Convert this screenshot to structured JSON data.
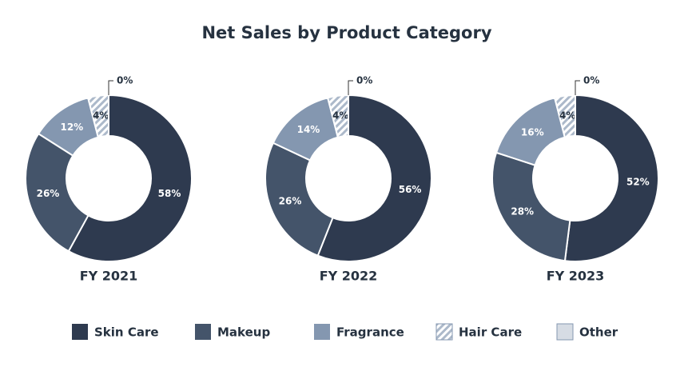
{
  "title": "Net Sales by Product Category",
  "categories": [
    "Skin Care",
    "Makeup",
    "Fragrance",
    "Hair Care",
    "Other"
  ],
  "colors": [
    "#2e3a4f",
    "#44546a",
    "#8497b0",
    "#acb9ca",
    "#d6dce4"
  ],
  "hatched": [
    false,
    false,
    false,
    true,
    false
  ],
  "chart_data": [
    {
      "type": "donut",
      "title": "FY 2021",
      "values": [
        58,
        26,
        12,
        4,
        0
      ],
      "value_labels": [
        "58%",
        "26%",
        "12%",
        "4%",
        "0%"
      ]
    },
    {
      "type": "donut",
      "title": "FY 2022",
      "values": [
        56,
        26,
        14,
        4,
        0
      ],
      "value_labels": [
        "56%",
        "26%",
        "14%",
        "4%",
        "0%"
      ]
    },
    {
      "type": "donut",
      "title": "FY 2023",
      "values": [
        52,
        28,
        16,
        4,
        0
      ],
      "value_labels": [
        "52%",
        "28%",
        "16%",
        "4%",
        "0%"
      ]
    }
  ]
}
